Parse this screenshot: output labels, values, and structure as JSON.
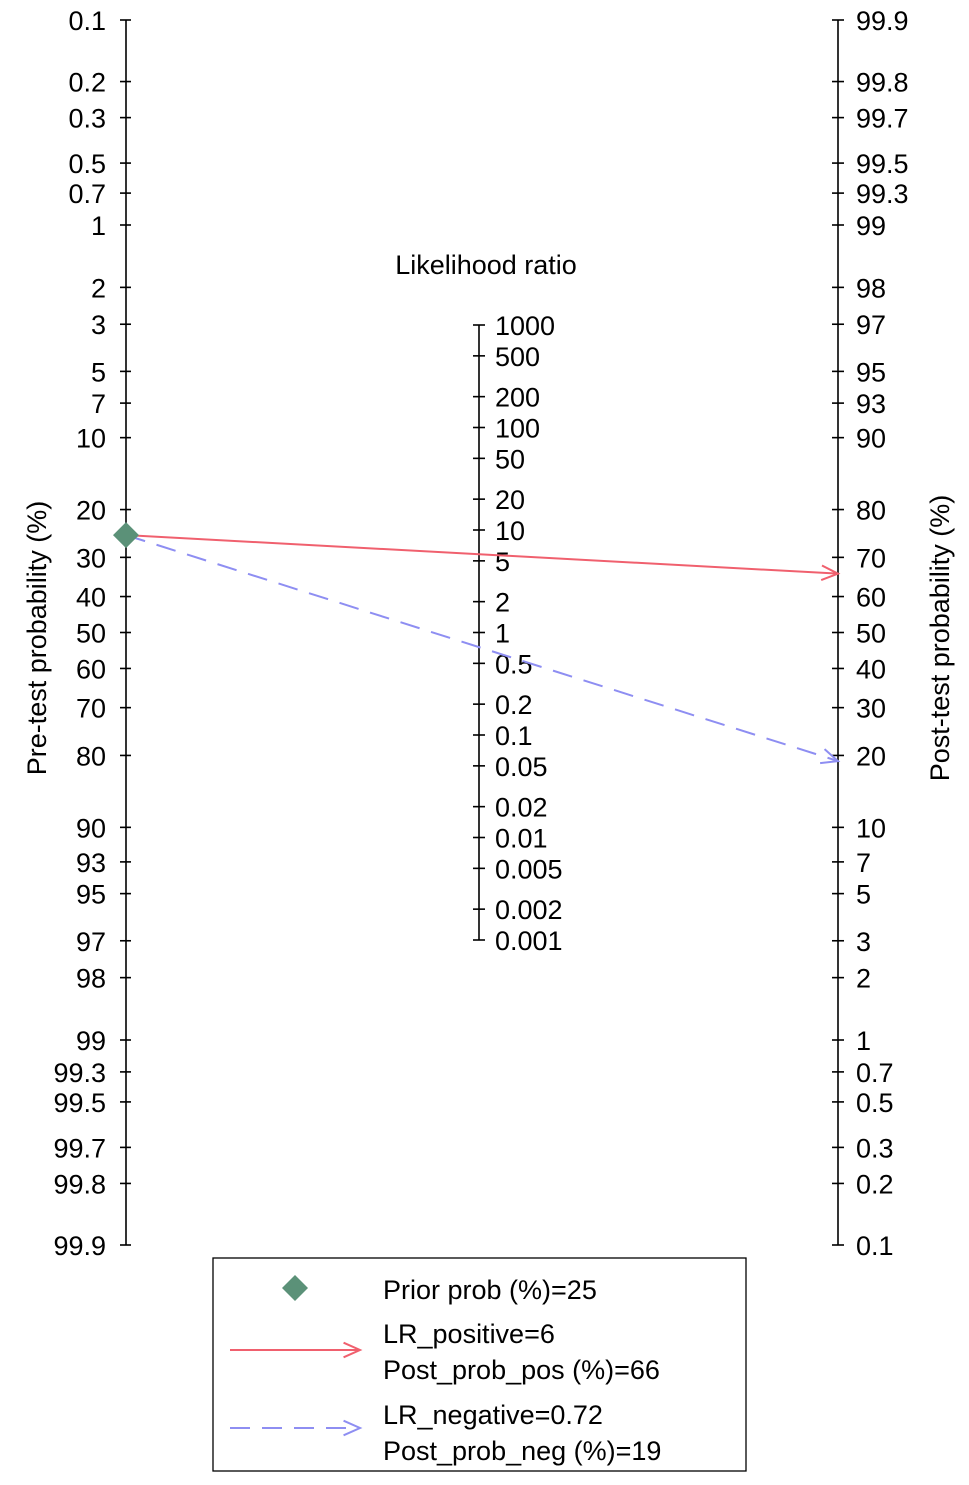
{
  "chart_data": {
    "type": "scatter",
    "subtype": "fagan-nomogram",
    "axes": {
      "pre_test": {
        "label": "Pre-test probability (%)",
        "ticks": [
          "0.1",
          "0.2",
          "0.3",
          "0.5",
          "0.7",
          "1",
          "2",
          "3",
          "5",
          "7",
          "10",
          "20",
          "30",
          "40",
          "50",
          "60",
          "70",
          "80",
          "90",
          "93",
          "95",
          "97",
          "98",
          "99",
          "99.3",
          "99.5",
          "99.7",
          "99.8",
          "99.9"
        ]
      },
      "likelihood_ratio": {
        "label": "Likelihood ratio",
        "ticks": [
          "1000",
          "500",
          "200",
          "100",
          "50",
          "20",
          "10",
          "5",
          "2",
          "1",
          "0.5",
          "0.2",
          "0.1",
          "0.05",
          "0.02",
          "0.01",
          "0.005",
          "0.002",
          "0.001"
        ]
      },
      "post_test": {
        "label": "Post-test probability (%)",
        "ticks": [
          "99.9",
          "99.8",
          "99.7",
          "99.5",
          "99.3",
          "99",
          "98",
          "97",
          "95",
          "93",
          "90",
          "80",
          "70",
          "60",
          "50",
          "40",
          "30",
          "20",
          "10",
          "7",
          "5",
          "3",
          "2",
          "1",
          "0.7",
          "0.5",
          "0.3",
          "0.2",
          "0.1"
        ]
      }
    },
    "prior_prob": 25,
    "lr_positive": 6,
    "post_prob_pos": 66,
    "lr_negative": 0.72,
    "post_prob_neg": 19,
    "colors": {
      "prior": "#5b9178",
      "positive": "#f0606e",
      "negative": "#8e8ef2",
      "axis": "#000000"
    },
    "legend": {
      "placement": "bottom",
      "items": [
        {
          "marker": "diamond",
          "lines": [
            "Prior prob (%)=25"
          ]
        },
        {
          "marker": "solid-arrow",
          "lines": [
            "LR_positive=6",
            "Post_prob_pos (%)=66"
          ]
        },
        {
          "marker": "dashed-arrow",
          "lines": [
            "LR_negative=0.72",
            "Post_prob_neg (%)=19"
          ]
        }
      ]
    }
  }
}
